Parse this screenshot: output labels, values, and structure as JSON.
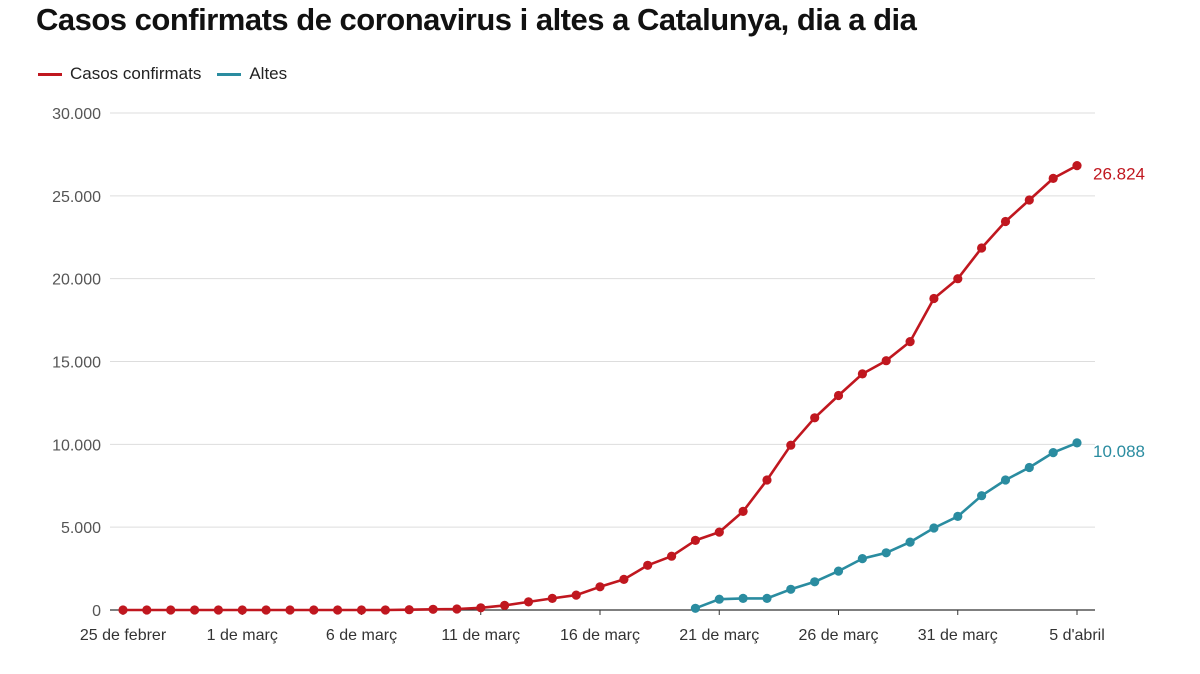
{
  "chart_data": {
    "type": "line",
    "title": "Casos confirmats de coronavirus i altes a Catalunya, dia a dia",
    "legend_position": "top-left",
    "ylim": [
      0,
      30000
    ],
    "y_ticks": [
      {
        "value": 0,
        "label": "0"
      },
      {
        "value": 5000,
        "label": "5.000"
      },
      {
        "value": 10000,
        "label": "10.000"
      },
      {
        "value": 15000,
        "label": "15.000"
      },
      {
        "value": 20000,
        "label": "20.000"
      },
      {
        "value": 25000,
        "label": "25.000"
      },
      {
        "value": 30000,
        "label": "30.000"
      }
    ],
    "x_ticks": [
      {
        "index": 0,
        "label": "25 de febrer"
      },
      {
        "index": 5,
        "label": "1 de març"
      },
      {
        "index": 10,
        "label": "6 de març"
      },
      {
        "index": 15,
        "label": "11 de març"
      },
      {
        "index": 20,
        "label": "16 de març"
      },
      {
        "index": 25,
        "label": "21 de març"
      },
      {
        "index": 30,
        "label": "26 de març"
      },
      {
        "index": 35,
        "label": "31 de març"
      },
      {
        "index": 40,
        "label": "5 d'abril"
      }
    ],
    "grid": true,
    "series": [
      {
        "name": "Casos confirmats",
        "color": "#c0171f",
        "end_label": "26.824",
        "values": [
          0,
          0,
          0,
          0,
          0,
          0,
          0,
          0,
          0,
          0,
          0,
          0,
          20,
          40,
          60,
          130,
          280,
          490,
          700,
          900,
          1400,
          1850,
          2700,
          3250,
          4200,
          4700,
          5950,
          7850,
          9950,
          11600,
          12950,
          14250,
          15050,
          16200,
          18800,
          20000,
          21850,
          23450,
          24750,
          26050,
          26824
        ]
      },
      {
        "name": "Altes",
        "color": "#2a8ca0",
        "end_label": "10.088",
        "start_index": 24,
        "values": [
          100,
          650,
          700,
          700,
          1250,
          1700,
          2350,
          3100,
          3450,
          4100,
          4950,
          5650,
          6900,
          7850,
          8600,
          9500,
          10088
        ]
      }
    ]
  }
}
